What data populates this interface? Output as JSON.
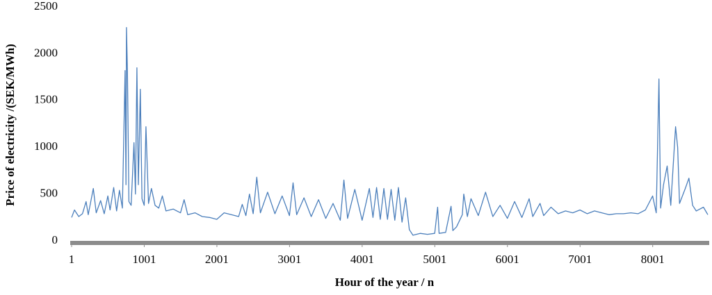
{
  "chart_data": {
    "type": "line",
    "x_label": "Hour of the year / n",
    "y_label": "Price of electricity /(SEK/MWh)",
    "x": [
      1,
      40,
      100,
      150,
      200,
      230,
      300,
      340,
      400,
      450,
      500,
      530,
      580,
      620,
      660,
      700,
      737,
      750,
      756,
      770,
      790,
      820,
      860,
      880,
      900,
      920,
      947,
      970,
      1000,
      1024,
      1060,
      1100,
      1150,
      1200,
      1250,
      1300,
      1400,
      1500,
      1550,
      1600,
      1700,
      1800,
      1900,
      2000,
      2100,
      2200,
      2300,
      2350,
      2400,
      2450,
      2500,
      2550,
      2600,
      2700,
      2800,
      2900,
      3000,
      3050,
      3100,
      3200,
      3300,
      3400,
      3500,
      3600,
      3700,
      3750,
      3800,
      3900,
      4000,
      4100,
      4150,
      4200,
      4250,
      4300,
      4350,
      4400,
      4450,
      4500,
      4550,
      4600,
      4650,
      4700,
      4800,
      4900,
      5000,
      5040,
      5060,
      5150,
      5225,
      5250,
      5300,
      5380,
      5400,
      5450,
      5500,
      5600,
      5700,
      5800,
      5900,
      6000,
      6100,
      6200,
      6300,
      6350,
      6450,
      6500,
      6600,
      6700,
      6800,
      6900,
      7000,
      7100,
      7200,
      7300,
      7400,
      7500,
      7600,
      7700,
      7800,
      7900,
      8000,
      8050,
      8087,
      8110,
      8150,
      8200,
      8250,
      8316,
      8345,
      8370,
      8450,
      8500,
      8550,
      8600,
      8700,
      8760
    ],
    "series": [
      {
        "color": "#4a7ebb",
        "values": [
          250,
          330,
          260,
          290,
          420,
          280,
          560,
          300,
          430,
          290,
          480,
          330,
          570,
          320,
          540,
          350,
          1820,
          600,
          2280,
          1800,
          420,
          380,
          1050,
          500,
          1850,
          600,
          1620,
          450,
          380,
          1220,
          400,
          560,
          380,
          350,
          480,
          320,
          340,
          300,
          440,
          280,
          300,
          260,
          250,
          230,
          300,
          280,
          260,
          390,
          270,
          500,
          290,
          680,
          300,
          520,
          290,
          480,
          270,
          620,
          280,
          460,
          260,
          440,
          240,
          400,
          220,
          650,
          240,
          550,
          220,
          560,
          250,
          570,
          230,
          560,
          230,
          550,
          220,
          570,
          200,
          460,
          120,
          60,
          80,
          70,
          80,
          360,
          80,
          90,
          370,
          110,
          150,
          280,
          500,
          260,
          450,
          270,
          520,
          260,
          380,
          240,
          420,
          250,
          450,
          260,
          400,
          270,
          360,
          290,
          320,
          300,
          330,
          290,
          320,
          300,
          280,
          290,
          290,
          300,
          290,
          330,
          480,
          300,
          1730,
          350,
          600,
          800,
          380,
          1220,
          1000,
          400,
          560,
          670,
          380,
          320,
          360,
          280
        ]
      }
    ],
    "xlim": [
      1,
      8760
    ],
    "ylim": [
      0,
      2500
    ],
    "xticks": [
      1,
      1001,
      2001,
      3001,
      4001,
      5001,
      6001,
      7001,
      8001
    ],
    "yticks": [
      0,
      500,
      1000,
      1500,
      2000,
      2500
    ]
  }
}
